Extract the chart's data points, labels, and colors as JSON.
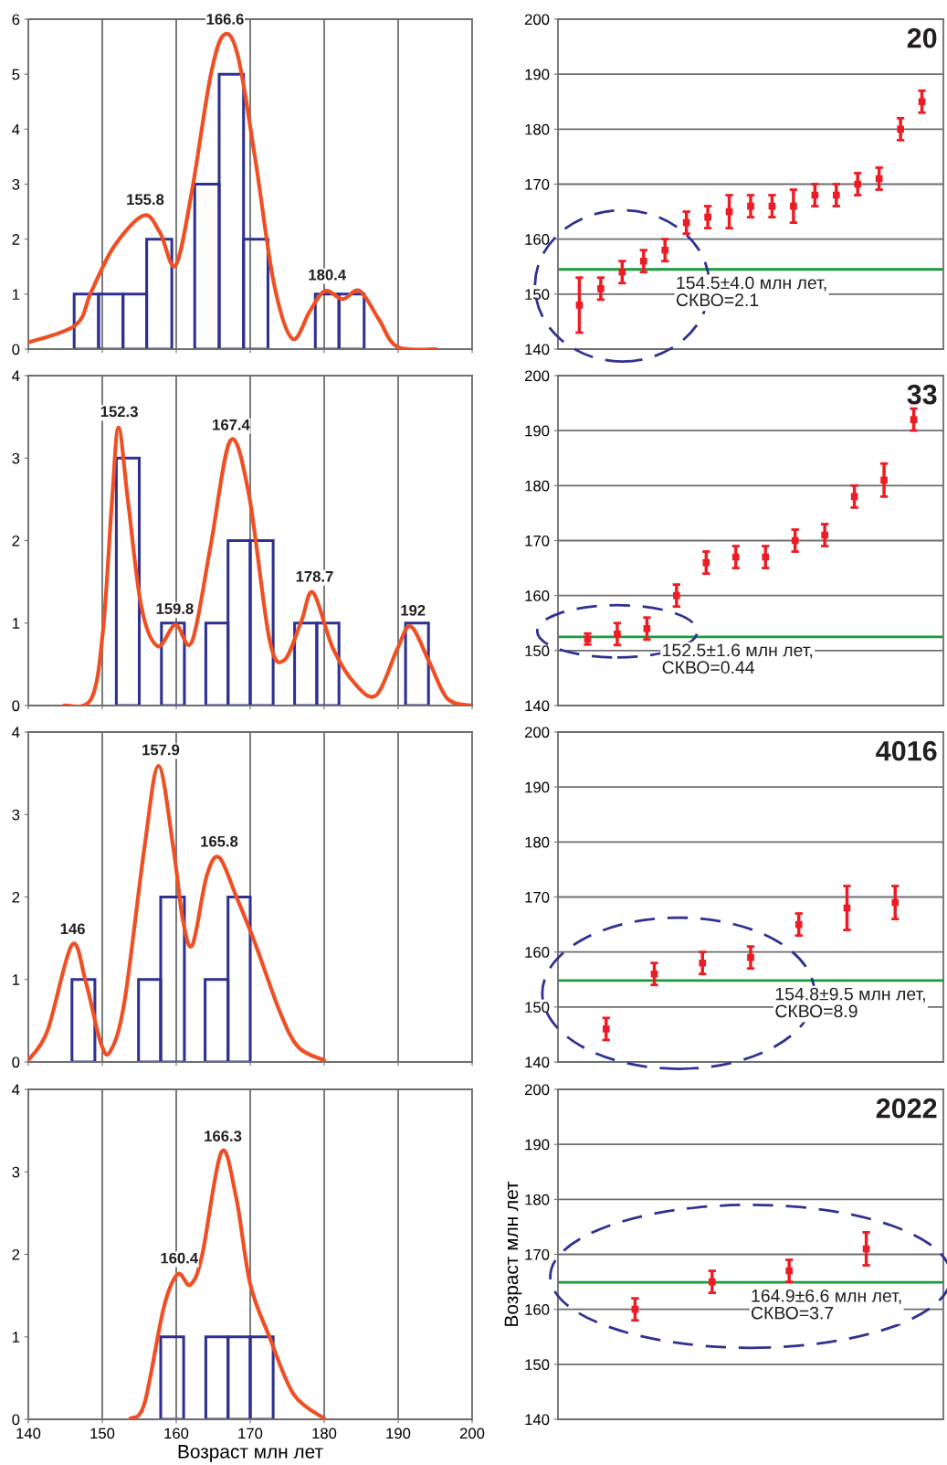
{
  "chart_data": [
    {
      "type": "histogram",
      "bins": [
        146.2,
        149.5,
        152.8,
        156.0,
        159.4,
        162.5,
        165.8,
        169.1,
        172.4,
        178.8,
        182.0,
        185.4
      ],
      "values": [
        1,
        1,
        1,
        2,
        0,
        3,
        5,
        2,
        0,
        1,
        1
      ],
      "color": "#2e3192",
      "series": [
        {
          "type": "line",
          "color": "#f04e23",
          "x": [
            140,
            146.4,
            148.5,
            151.6,
            155.6,
            157.8,
            159.9,
            162.1,
            164.6,
            166.4,
            168.3,
            170.7,
            173.2,
            175.7,
            178.1,
            180.1,
            182.5,
            184.8,
            187.4,
            189.9,
            195.1
          ],
          "values": [
            0.12,
            0.44,
            1.04,
            1.87,
            2.43,
            2.12,
            1.52,
            2.86,
            4.94,
            5.71,
            5.35,
            3.44,
            1.2,
            0.19,
            0.7,
            1.06,
            0.91,
            1.06,
            0.54,
            0.04,
            0.0
          ]
        }
      ],
      "xlim": [
        140,
        200
      ],
      "xticks": [
        140,
        150,
        160,
        170,
        180,
        190,
        200
      ],
      "ylim": [
        0,
        6
      ],
      "yticks": [
        0,
        1,
        2,
        3,
        4,
        5,
        6
      ],
      "grid": "x",
      "tick_labels": "y",
      "annotations": [
        {
          "text": "155.8",
          "x": 155.8,
          "y": 2.43
        },
        {
          "text": "166.6",
          "x": 166.6,
          "y": 5.71
        },
        {
          "text": "180.4",
          "x": 180.4,
          "y": 1.06
        }
      ]
    },
    {
      "type": "scatter",
      "title": "20",
      "categories": [
        null,
        null,
        null,
        null,
        null,
        null,
        null,
        null,
        null,
        null,
        null,
        null,
        null,
        null,
        null,
        null,
        null
      ],
      "marker": "square",
      "series": [
        {
          "color": "#ed1c24",
          "values": [
            148,
            151,
            154,
            156,
            158,
            null,
            null,
            null,
            null,
            null,
            null,
            null,
            null,
            null,
            null,
            null,
            null
          ],
          "errors": [
            5,
            2,
            2,
            2,
            2,
            null,
            null,
            null,
            null,
            null,
            null,
            null,
            null,
            null,
            null,
            null,
            null
          ]
        },
        {
          "color": "#ed1c24",
          "values": [
            null,
            null,
            null,
            null,
            null,
            163,
            164,
            165,
            166,
            166,
            166,
            168,
            168,
            170,
            171,
            180,
            185
          ],
          "errors": [
            null,
            null,
            null,
            null,
            null,
            2,
            2,
            3,
            2,
            2,
            3,
            2,
            2,
            2,
            2,
            2,
            2
          ]
        }
      ],
      "ylim": [
        140,
        200
      ],
      "yticks": [
        140,
        150,
        160,
        170,
        180,
        190,
        200
      ],
      "grid": "y",
      "tick_labels": "y",
      "ref_lines": [
        {
          "axis": "y",
          "value": 154.5,
          "color": "#1a9a3a"
        }
      ],
      "annotations": [
        "154.5±4.0 млн лет,\nСКВО=2.1"
      ]
    },
    {
      "type": "histogram",
      "bins": [
        151.9,
        155.0,
        158.0,
        161.1,
        164.0,
        167.0,
        170.0,
        173.1,
        176.0,
        179.0,
        182.0,
        191.0,
        194.1
      ],
      "values": [
        3,
        0,
        1,
        0,
        1,
        2,
        2,
        0,
        1,
        1,
        0,
        1
      ],
      "color": "#2e3192",
      "series": [
        {
          "type": "line",
          "color": "#f04e23",
          "x": [
            144.8,
            148.5,
            150.1,
            151.3,
            152.2,
            153.5,
            155.3,
            157.5,
            159.9,
            162.1,
            164.6,
            167.3,
            169.8,
            172.6,
            174.6,
            176.9,
            178.5,
            181.2,
            184.3,
            187.1,
            189.9,
            191.7,
            194.2,
            196.7,
            200
          ],
          "values": [
            0,
            0.08,
            0.91,
            2.46,
            3.37,
            2.46,
            1.19,
            0.72,
            0.98,
            0.77,
            1.91,
            3.21,
            2.57,
            0.8,
            0.55,
            1.02,
            1.37,
            0.69,
            0.25,
            0.13,
            0.69,
            0.96,
            0.53,
            0.08,
            0
          ]
        }
      ],
      "xlim": [
        140,
        200
      ],
      "xticks": [
        140,
        150,
        160,
        170,
        180,
        190,
        200
      ],
      "ylim": [
        0,
        4
      ],
      "yticks": [
        0,
        1,
        2,
        3,
        4
      ],
      "grid": "x",
      "tick_labels": "y",
      "annotations": [
        {
          "text": "152.3",
          "x": 152.3,
          "y": 3.37
        },
        {
          "text": "159.8",
          "x": 159.8,
          "y": 0.98
        },
        {
          "text": "167.4",
          "x": 167.4,
          "y": 3.21
        },
        {
          "text": "178.7",
          "x": 178.7,
          "y": 1.37
        },
        {
          "text": "192",
          "x": 192,
          "y": 0.96
        }
      ]
    },
    {
      "type": "scatter",
      "title": "33",
      "categories": [
        null,
        null,
        null,
        null,
        null,
        null,
        null,
        null,
        null,
        null,
        null,
        null
      ],
      "marker": "square",
      "series": [
        {
          "color": "#ed1c24",
          "values": [
            152.1,
            153,
            154,
            null,
            null,
            null,
            null,
            null,
            null,
            null,
            null,
            null
          ],
          "errors": [
            1,
            2,
            2,
            null,
            null,
            null,
            null,
            null,
            null,
            null,
            null,
            null
          ]
        },
        {
          "color": "#ed1c24",
          "values": [
            null,
            null,
            null,
            160,
            166,
            167,
            167,
            170,
            171,
            178,
            181,
            192
          ],
          "errors": [
            null,
            null,
            null,
            2,
            2,
            2,
            2,
            2,
            2,
            2,
            3,
            2
          ]
        }
      ],
      "ylim": [
        140,
        200
      ],
      "yticks": [
        140,
        150,
        160,
        170,
        180,
        190,
        200
      ],
      "grid": "y",
      "tick_labels": "y",
      "ref_lines": [
        {
          "axis": "y",
          "value": 152.5,
          "color": "#1a9a3a"
        }
      ],
      "annotations": [
        "152.5±1.6 млн лет,\nСКВО=0.44"
      ]
    },
    {
      "type": "histogram",
      "bins": [
        145.9,
        149.0,
        154.9,
        157.9,
        161.1,
        163.9,
        167.0,
        170.0
      ],
      "values": [
        1,
        0,
        1,
        2,
        0,
        1,
        2
      ],
      "color": "#2e3192",
      "series": [
        {
          "type": "line",
          "color": "#f04e23",
          "x": [
            140,
            142.6,
            145.9,
            147.8,
            149.8,
            151.1,
            153.0,
            155.7,
            157.6,
            159.6,
            160.9,
            162.2,
            164.1,
            165.8,
            168.1,
            170.7,
            174.0,
            176.5,
            180
          ],
          "values": [
            0.02,
            0.38,
            1.42,
            0.96,
            0.23,
            0.13,
            0.73,
            2.6,
            3.59,
            2.6,
            1.72,
            1.42,
            2.25,
            2.48,
            2.01,
            1.43,
            0.61,
            0.18,
            0.02
          ]
        }
      ],
      "xlim": [
        140,
        200
      ],
      "xticks": [
        140,
        150,
        160,
        170,
        180,
        190,
        200
      ],
      "ylim": [
        0,
        4
      ],
      "yticks": [
        0,
        1,
        2,
        3,
        4
      ],
      "grid": "x",
      "tick_labels": "y",
      "annotations": [
        {
          "text": "146",
          "x": 146,
          "y": 1.42
        },
        {
          "text": "157.9",
          "x": 157.9,
          "y": 3.59
        },
        {
          "text": "165.8",
          "x": 165.8,
          "y": 2.48
        }
      ]
    },
    {
      "type": "scatter",
      "title": "4016",
      "categories": [
        null,
        null,
        null,
        null,
        null,
        null,
        null
      ],
      "marker": "square",
      "series": [
        {
          "color": "#ed1c24",
          "values": [
            146,
            156,
            158,
            159,
            null,
            null,
            null
          ],
          "errors": [
            2,
            2,
            2,
            2,
            null,
            null,
            null
          ]
        },
        {
          "color": "#ed1c24",
          "values": [
            null,
            null,
            null,
            null,
            165,
            168,
            169
          ],
          "errors": [
            null,
            null,
            null,
            null,
            2,
            4,
            3
          ]
        }
      ],
      "ylim": [
        140,
        200
      ],
      "yticks": [
        140,
        150,
        160,
        170,
        180,
        190,
        200
      ],
      "grid": "y",
      "tick_labels": "y",
      "ref_lines": [
        {
          "axis": "y",
          "value": 154.8,
          "color": "#1a9a3a"
        }
      ],
      "annotations": [
        "154.8±9.5 млн лет,\nСКВО=8.9"
      ]
    },
    {
      "type": "histogram",
      "bins": [
        157.9,
        161.0,
        164.0,
        167.0,
        170.0,
        173.1
      ],
      "values": [
        1,
        0,
        1,
        1,
        1
      ],
      "color": "#2e3192",
      "series": [
        {
          "type": "line",
          "color": "#f04e23",
          "x": [
            153.8,
            155.7,
            158.3,
            160.2,
            161.9,
            163.5,
            166.1,
            168.1,
            170.0,
            172.6,
            175.9,
            180
          ],
          "values": [
            0.01,
            0.19,
            1.35,
            1.76,
            1.63,
            1.99,
            3.24,
            2.69,
            1.64,
            1.0,
            0.3,
            0.01
          ]
        }
      ],
      "xlim": [
        140,
        200
      ],
      "xticks": [
        140,
        150,
        160,
        170,
        180,
        190,
        200
      ],
      "ylim": [
        0,
        4
      ],
      "yticks": [
        0,
        1,
        2,
        3,
        4
      ],
      "grid": "x",
      "xlabel": "Возраст млн лет",
      "annotations": [
        {
          "text": "160.4",
          "x": 160.4,
          "y": 1.76
        },
        {
          "text": "166.3",
          "x": 166.3,
          "y": 3.24
        }
      ]
    },
    {
      "type": "scatter",
      "title": "2022",
      "categories": [
        null,
        null,
        null,
        null
      ],
      "marker": "square",
      "ylabel": "Возраст млн лет",
      "series": [
        {
          "color": "#ed1c24",
          "values": [
            160,
            165,
            167,
            171
          ],
          "errors": [
            2,
            2,
            2,
            3
          ]
        }
      ],
      "ylim": [
        140,
        200
      ],
      "yticks": [
        140,
        150,
        160,
        170,
        180,
        190,
        200
      ],
      "grid": "y",
      "tick_labels": "y",
      "ref_lines": [
        {
          "axis": "y",
          "value": 164.9,
          "color": "#1a9a3a"
        }
      ],
      "annotations": [
        "164.9±6.6 млн лет,\nСКВО=3.7"
      ]
    }
  ]
}
